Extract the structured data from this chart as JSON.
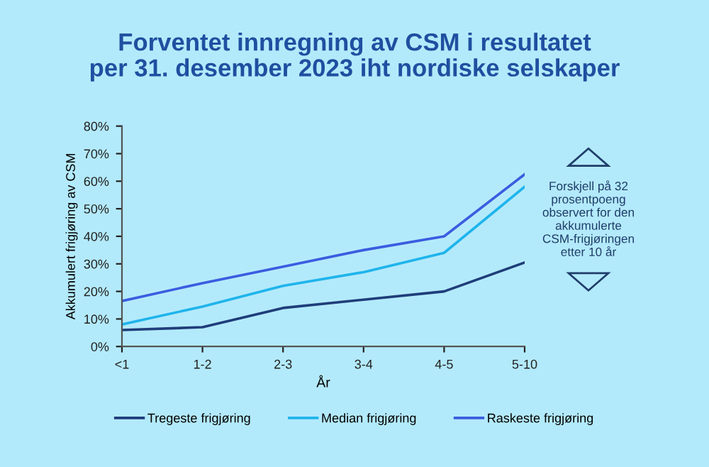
{
  "chart_data": {
    "type": "line",
    "title": "Forventet innregning av CSM i resultatet\nper 31. desember 2023 iht nordiske selskaper",
    "xlabel": "År",
    "ylabel": "Akkumulert frigjøring av CSM",
    "categories": [
      "<1",
      "1-2",
      "2-3",
      "3-4",
      "4-5",
      "5-10"
    ],
    "series": [
      {
        "name": "Tregeste frigjøring",
        "color": "#1f3d7a",
        "values": [
          6,
          7,
          14,
          17,
          20,
          30.5
        ]
      },
      {
        "name": "Median frigjøring",
        "color": "#1fb4ec",
        "values": [
          8,
          14.5,
          22,
          27,
          34,
          58
        ]
      },
      {
        "name": "Raskeste frigjøring",
        "color": "#3a5de0",
        "values": [
          16.5,
          23,
          29,
          35,
          40,
          62.5
        ]
      }
    ],
    "ylim": [
      0,
      80
    ],
    "yticks": [
      {
        "value": 0,
        "label": "0%"
      },
      {
        "value": 10,
        "label": "10%"
      },
      {
        "value": 20,
        "label": "20%"
      },
      {
        "value": 30,
        "label": "30%"
      },
      {
        "value": 40,
        "label": "40%"
      },
      {
        "value": 50,
        "label": "50%"
      },
      {
        "value": 60,
        "label": "60%"
      },
      {
        "value": 70,
        "label": "70%"
      },
      {
        "value": 80,
        "label": "80%"
      }
    ],
    "grid": false,
    "legend": "bottom",
    "marker": "none",
    "line_style": "solid",
    "annotations": [
      "Forskjell på 32 prosentpoeng observert for den akkumulerte CSM-frigjøringen etter 10 år"
    ]
  }
}
